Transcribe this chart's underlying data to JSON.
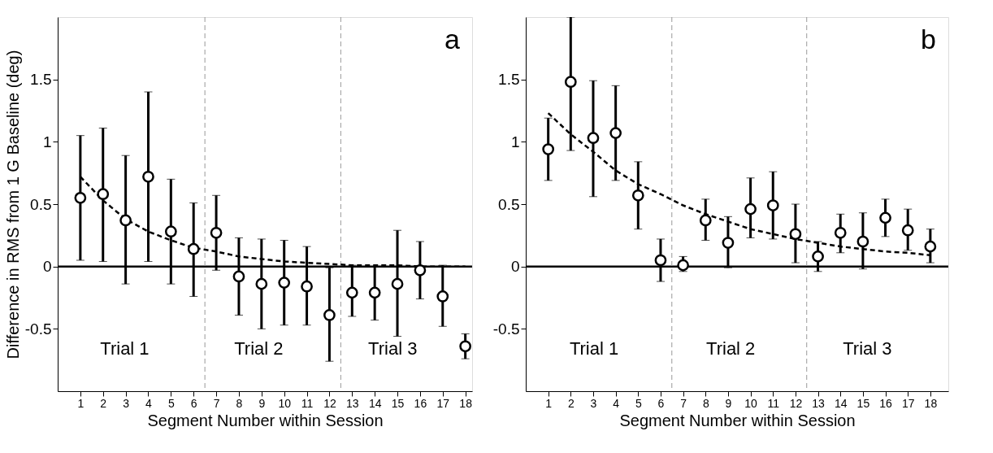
{
  "chart_data": [
    {
      "type": "scatter",
      "xlabel": "Segment Number within Session",
      "ylabel": "Difference in RMS from 1 G Baseline (deg)",
      "x": [
        1,
        2,
        3,
        4,
        5,
        6,
        7,
        8,
        9,
        10,
        11,
        12,
        13,
        14,
        15,
        16,
        17,
        18
      ],
      "xlim": [
        0,
        18.3
      ],
      "ylim": [
        -1,
        2
      ],
      "xticks": [
        1,
        2,
        3,
        4,
        5,
        6,
        7,
        8,
        9,
        10,
        11,
        12,
        13,
        14,
        15,
        16,
        17,
        18
      ],
      "yticks": [
        -0.5,
        0,
        0.5,
        1,
        1.5
      ],
      "grid": false,
      "series": [
        {
          "color": "#000000",
          "marker": "circle",
          "values": [
            0.55,
            0.58,
            0.37,
            0.72,
            0.28,
            0.14,
            0.27,
            -0.08,
            -0.14,
            -0.13,
            -0.16,
            -0.39,
            -0.21,
            -0.21,
            -0.14,
            -0.03,
            -0.24,
            -0.64
          ],
          "errors": [
            [
              0.05,
              1.05
            ],
            [
              0.04,
              1.11
            ],
            [
              -0.14,
              0.89
            ],
            [
              0.04,
              1.4
            ],
            [
              -0.14,
              0.7
            ],
            [
              -0.24,
              0.51
            ],
            [
              -0.03,
              0.57
            ],
            [
              -0.39,
              0.23
            ],
            [
              -0.5,
              0.22
            ],
            [
              -0.47,
              0.21
            ],
            [
              -0.47,
              0.16
            ],
            [
              -0.76,
              -0.01
            ],
            [
              -0.4,
              0.01
            ],
            [
              -0.43,
              0.0
            ],
            [
              -0.56,
              0.29
            ],
            [
              -0.26,
              0.2
            ],
            [
              -0.48,
              0.01
            ],
            [
              -0.74,
              -0.54
            ]
          ]
        },
        {
          "type": "line",
          "color": "#000000",
          "marker": "none",
          "line_style": "dashed",
          "values": [
            0.72,
            0.53,
            0.38,
            0.28,
            0.21,
            0.15,
            0.12,
            0.08,
            0.06,
            0.04,
            0.03,
            0.02,
            0.01,
            0.01,
            0.01,
            0.0,
            0.0,
            0.0
          ]
        }
      ],
      "ref_lines": [
        {
          "axis": "y",
          "value": 0,
          "line_style": "solid"
        },
        {
          "axis": "x",
          "value": 6.5,
          "line_style": "dashed",
          "color": "#999999"
        },
        {
          "axis": "x",
          "value": 12.5,
          "line_style": "dashed",
          "color": "#999999"
        }
      ],
      "annotations": [
        "a",
        "Trial 1",
        "Trial 2",
        "Trial 3"
      ]
    },
    {
      "type": "scatter",
      "xlabel": "Segment Number within Session",
      "x": [
        1,
        2,
        3,
        4,
        5,
        6,
        7,
        8,
        9,
        10,
        11,
        12,
        13,
        14,
        15,
        16,
        17,
        18
      ],
      "xlim": [
        0,
        18.8
      ],
      "ylim": [
        -1,
        2
      ],
      "xticks": [
        1,
        2,
        3,
        4,
        5,
        6,
        7,
        8,
        9,
        10,
        11,
        12,
        13,
        14,
        15,
        16,
        17,
        18
      ],
      "yticks": [
        -0.5,
        0,
        0.5,
        1,
        1.5
      ],
      "grid": false,
      "series": [
        {
          "color": "#000000",
          "marker": "circle",
          "values": [
            0.94,
            1.48,
            1.03,
            1.07,
            0.57,
            0.05,
            0.01,
            0.37,
            0.19,
            0.46,
            0.49,
            0.26,
            0.08,
            0.27,
            0.2,
            0.39,
            0.29,
            0.16
          ],
          "errors": [
            [
              0.69,
              1.19
            ],
            [
              0.93,
              2.0
            ],
            [
              0.56,
              1.49
            ],
            [
              0.69,
              1.45
            ],
            [
              0.3,
              0.84
            ],
            [
              -0.12,
              0.22
            ],
            [
              -0.04,
              0.08
            ],
            [
              0.21,
              0.54
            ],
            [
              -0.01,
              0.4
            ],
            [
              0.23,
              0.71
            ],
            [
              0.22,
              0.76
            ],
            [
              0.03,
              0.5
            ],
            [
              -0.04,
              0.2
            ],
            [
              0.11,
              0.42
            ],
            [
              -0.02,
              0.43
            ],
            [
              0.24,
              0.54
            ],
            [
              0.13,
              0.46
            ],
            [
              0.03,
              0.3
            ]
          ]
        },
        {
          "type": "line",
          "color": "#000000",
          "marker": "none",
          "line_style": "dashed",
          "values": [
            1.23,
            1.06,
            0.92,
            0.77,
            0.66,
            0.58,
            0.49,
            0.42,
            0.36,
            0.3,
            0.26,
            0.22,
            0.19,
            0.16,
            0.14,
            0.12,
            0.11,
            0.09
          ]
        }
      ],
      "ref_lines": [
        {
          "axis": "y",
          "value": 0,
          "line_style": "solid"
        },
        {
          "axis": "x",
          "value": 6.5,
          "line_style": "dashed",
          "color": "#999999"
        },
        {
          "axis": "x",
          "value": 12.5,
          "line_style": "dashed",
          "color": "#999999"
        }
      ],
      "annotations": [
        "b",
        "Trial 1",
        "Trial 2",
        "Trial 3"
      ]
    }
  ]
}
